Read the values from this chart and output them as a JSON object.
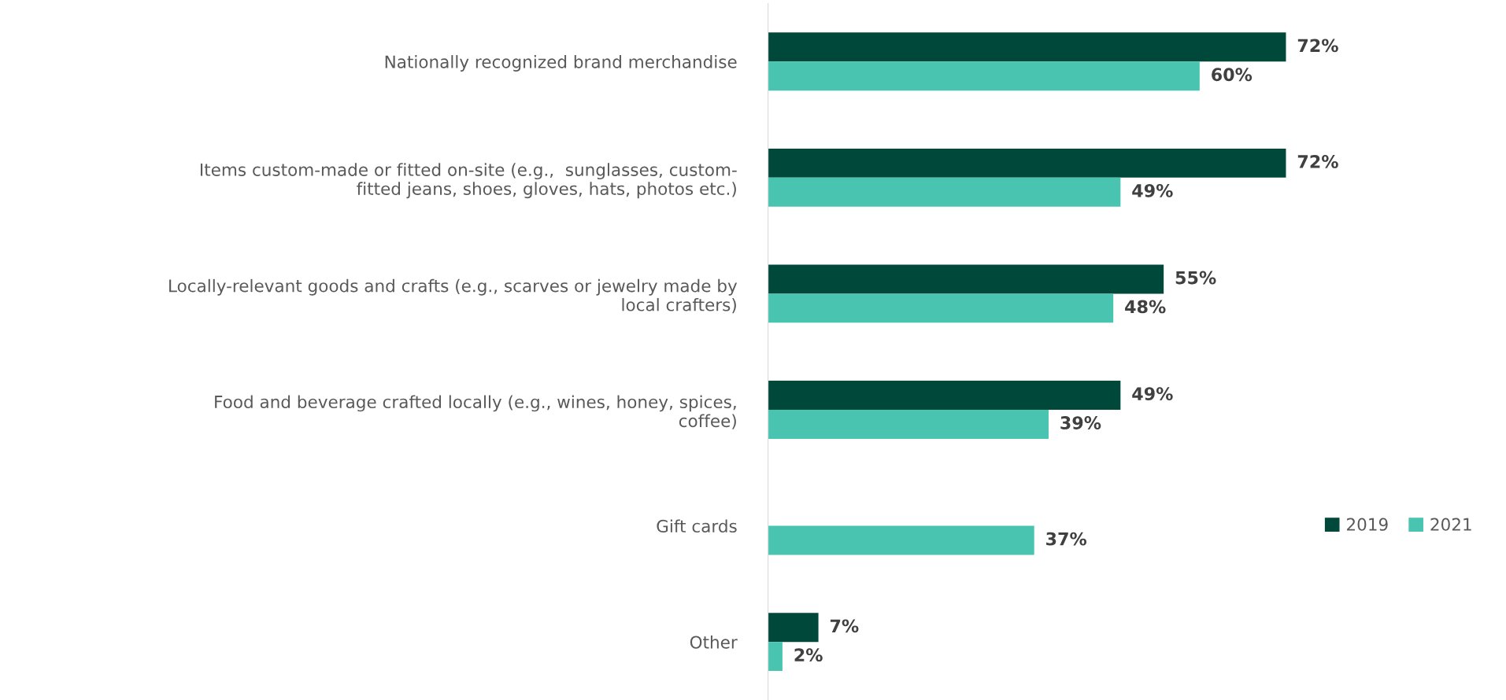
{
  "chart_data": {
    "type": "bar",
    "orientation": "horizontal",
    "categories": [
      "Nationally recognized brand merchandise",
      "Items custom-made or fitted on-site (e.g.,  sunglasses, custom-\nfitted jeans, shoes, gloves, hats, photos etc.)",
      "Locally-relevant goods and crafts (e.g., scarves or jewelry made by\nlocal crafters)",
      "Food and beverage crafted locally (e.g., wines, honey, spices,\ncoffee)",
      "Gift cards",
      "Other"
    ],
    "series": [
      {
        "name": "2019",
        "color": "#00483a",
        "values": [
          72,
          72,
          55,
          49,
          null,
          7
        ],
        "value_labels": [
          "72%",
          "72%",
          "55%",
          "49%",
          null,
          "7%"
        ]
      },
      {
        "name": "2021",
        "color": "#48c4b0",
        "values": [
          60,
          49,
          48,
          39,
          37,
          2
        ],
        "value_labels": [
          "60%",
          "49%",
          "48%",
          "39%",
          "37%",
          "2%"
        ]
      }
    ],
    "tick_labels": "y",
    "legend": "right",
    "grid": false
  }
}
